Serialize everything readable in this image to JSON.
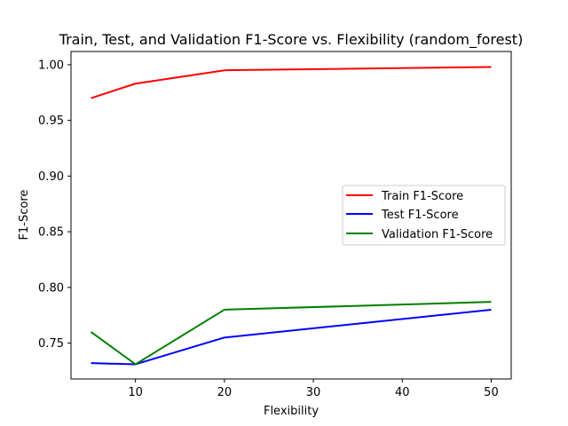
{
  "chart_data": {
    "type": "line",
    "title": "Train, Test, and Validation F1-Score vs. Flexibility (random_forest)",
    "xlabel": "Flexibility",
    "ylabel": "F1-Score",
    "x": [
      5,
      10,
      20,
      50
    ],
    "xlim": [
      2.75,
      52.25
    ],
    "ylim": [
      0.7178,
      1.0119
    ],
    "xticks": [
      10,
      20,
      30,
      40,
      50
    ],
    "xtick_labels": [
      "10",
      "20",
      "30",
      "40",
      "50"
    ],
    "yticks": [
      0.75,
      0.8,
      0.85,
      0.9,
      0.95,
      1.0
    ],
    "ytick_labels": [
      "0.75",
      "0.80",
      "0.85",
      "0.90",
      "0.95",
      "1.00"
    ],
    "grid": false,
    "legend_position": "center-right",
    "series": [
      {
        "name": "Train F1-Score",
        "color": "#ff0000",
        "values": [
          0.97,
          0.983,
          0.995,
          0.998
        ]
      },
      {
        "name": "Test F1-Score",
        "color": "#0000ff",
        "values": [
          0.732,
          0.731,
          0.755,
          0.78
        ]
      },
      {
        "name": "Validation F1-Score",
        "color": "#008000",
        "values": [
          0.76,
          0.731,
          0.78,
          0.787
        ]
      }
    ]
  }
}
